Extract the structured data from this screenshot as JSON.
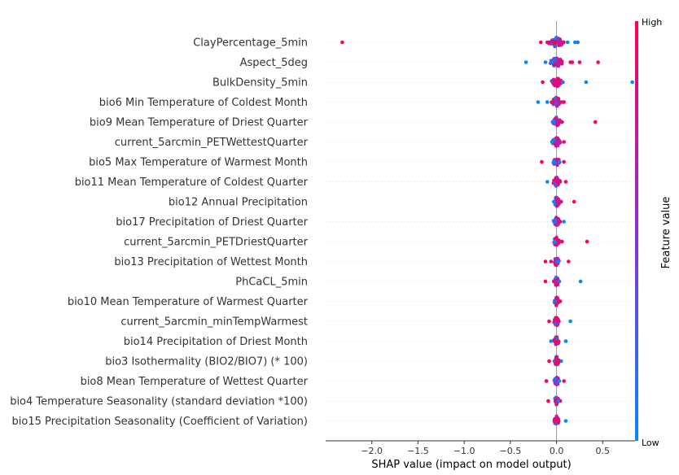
{
  "chart_data": {
    "type": "scatter",
    "subtype": "shap-beeswarm",
    "xlabel": "SHAP value (impact on model output)",
    "xticks": [
      -2.0,
      -1.5,
      -1.0,
      -0.5,
      0.0,
      0.5
    ],
    "xtick_labels": [
      "−2.0",
      "−1.5",
      "−1.0",
      "−0.5",
      "0.0",
      "0.5"
    ],
    "xlim": [
      -2.5,
      0.85
    ],
    "colorbar": {
      "label": "Feature value",
      "high_label": "High",
      "low_label": "Low",
      "high_color": "#ff0052",
      "low_color": "#008bfb"
    },
    "features": [
      {
        "name": "ClayPercentage_5min",
        "spread": 0.09,
        "points": [
          [
            -2.32,
            1.0
          ],
          [
            -0.17,
            1.0
          ],
          [
            -0.08,
            0.9
          ],
          [
            0.12,
            0.0
          ],
          [
            0.2,
            0.0
          ],
          [
            0.23,
            0.1
          ],
          [
            -0.1,
            0.8
          ]
        ]
      },
      {
        "name": "Aspect_5deg",
        "spread": 0.08,
        "points": [
          [
            -0.33,
            0.0
          ],
          [
            -0.12,
            0.1
          ],
          [
            0.15,
            1.0
          ],
          [
            0.17,
            0.9
          ],
          [
            0.45,
            1.0
          ],
          [
            0.25,
            0.9
          ],
          [
            -0.05,
            0.0
          ]
        ]
      },
      {
        "name": "BulkDensity_5min",
        "spread": 0.06,
        "points": [
          [
            -0.15,
            1.0
          ],
          [
            0.32,
            0.0
          ],
          [
            0.82,
            0.0
          ],
          [
            0.07,
            0.1
          ]
        ]
      },
      {
        "name": "bio6 Min Temperature of Coldest Month",
        "spread": 0.06,
        "points": [
          [
            -0.2,
            0.0
          ],
          [
            -0.1,
            0.05
          ],
          [
            0.08,
            1.0
          ],
          [
            0.06,
            0.9
          ]
        ]
      },
      {
        "name": "bio9 Mean Temperature of Driest Quarter",
        "spread": 0.05,
        "points": [
          [
            0.42,
            1.0
          ],
          [
            0.06,
            0.9
          ],
          [
            -0.03,
            0.0
          ]
        ]
      },
      {
        "name": "current_5arcmin_PETWettestQuarter",
        "spread": 0.05,
        "points": [
          [
            0.08,
            0.9
          ],
          [
            -0.05,
            0.0
          ]
        ]
      },
      {
        "name": "bio5 Max Temperature of Warmest Month",
        "spread": 0.04,
        "points": [
          [
            -0.16,
            1.0
          ],
          [
            0.08,
            0.9
          ],
          [
            0.03,
            0.1
          ]
        ]
      },
      {
        "name": "bio11 Mean Temperature of Coldest Quarter",
        "spread": 0.04,
        "points": [
          [
            -0.1,
            0.0
          ],
          [
            0.1,
            1.0
          ],
          [
            0.04,
            0.8
          ]
        ]
      },
      {
        "name": "bio12 Annual Precipitation",
        "spread": 0.04,
        "points": [
          [
            0.19,
            1.0
          ],
          [
            -0.03,
            0.0
          ],
          [
            0.05,
            0.8
          ]
        ]
      },
      {
        "name": "bio17 Precipitation of Driest Quarter",
        "spread": 0.04,
        "points": [
          [
            0.08,
            0.0
          ],
          [
            0.04,
            1.0
          ],
          [
            -0.02,
            0.1
          ]
        ]
      },
      {
        "name": "current_5arcmin_PETDriestQuarter",
        "spread": 0.04,
        "points": [
          [
            0.33,
            1.0
          ],
          [
            0.06,
            0.9
          ],
          [
            -0.02,
            0.0
          ]
        ]
      },
      {
        "name": "bio13 Precipitation of Wettest Month",
        "spread": 0.03,
        "points": [
          [
            -0.12,
            1.0
          ],
          [
            0.13,
            1.0
          ],
          [
            -0.06,
            0.9
          ],
          [
            0.02,
            0.0
          ]
        ]
      },
      {
        "name": "PhCaCL_5min",
        "spread": 0.03,
        "points": [
          [
            -0.12,
            1.0
          ],
          [
            0.26,
            0.0
          ],
          [
            0.03,
            0.1
          ],
          [
            -0.03,
            0.9
          ]
        ]
      },
      {
        "name": "bio10 Mean Temperature of Warmest Quarter",
        "spread": 0.03,
        "points": [
          [
            0.04,
            1.0
          ],
          [
            -0.02,
            0.1
          ]
        ]
      },
      {
        "name": "current_5arcmin_minTempWarmest",
        "spread": 0.03,
        "points": [
          [
            -0.08,
            1.0
          ],
          [
            0.15,
            0.0
          ],
          [
            0.02,
            0.8
          ]
        ]
      },
      {
        "name": "bio14 Precipitation of Driest Month",
        "spread": 0.03,
        "points": [
          [
            -0.06,
            0.0
          ],
          [
            0.1,
            0.0
          ],
          [
            0.02,
            0.9
          ]
        ]
      },
      {
        "name": "bio3 Isothermality (BIO2/BIO7) (* 100)",
        "spread": 0.03,
        "points": [
          [
            -0.08,
            1.0
          ],
          [
            0.05,
            0.1
          ],
          [
            0.02,
            0.9
          ]
        ]
      },
      {
        "name": "bio8 Mean Temperature of Wettest Quarter",
        "spread": 0.03,
        "points": [
          [
            -0.11,
            1.0
          ],
          [
            0.08,
            0.9
          ],
          [
            0.03,
            0.0
          ]
        ]
      },
      {
        "name": "bio4 Temperature Seasonality (standard deviation *100)",
        "spread": 0.03,
        "points": [
          [
            -0.09,
            1.0
          ],
          [
            0.04,
            0.9
          ],
          [
            0.02,
            0.1
          ]
        ]
      },
      {
        "name": "bio15 Precipitation Seasonality (Coefficient of Variation)",
        "spread": 0.03,
        "points": [
          [
            0.1,
            0.0
          ],
          [
            0.02,
            0.9
          ]
        ]
      }
    ]
  }
}
